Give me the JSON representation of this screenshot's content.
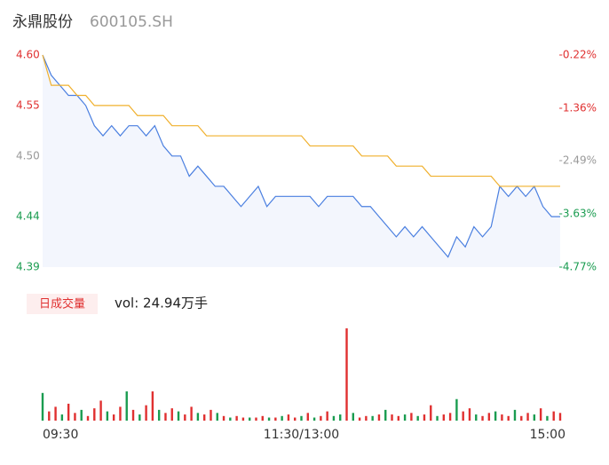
{
  "header": {
    "title": "永鼎股份",
    "code": "600105.SH"
  },
  "chart_data": [
    {
      "type": "line",
      "x": [
        0,
        4,
        8,
        12,
        16,
        20,
        24,
        28,
        32,
        36,
        40,
        44,
        48,
        52,
        56,
        60,
        64,
        68,
        72,
        76,
        80,
        84,
        88,
        92,
        96,
        100,
        104,
        108,
        112,
        116,
        120,
        124,
        128,
        132,
        136,
        140,
        144,
        148,
        152,
        156,
        160,
        164,
        168,
        172,
        176,
        180,
        184,
        188,
        192,
        196,
        200,
        204,
        208,
        212,
        216,
        220,
        224,
        228,
        232,
        236,
        240
      ],
      "xlim": [
        0,
        240
      ],
      "xticks": [
        {
          "value": 0,
          "label": "09:30"
        },
        {
          "value": 120,
          "label": "11:30/13:00"
        },
        {
          "value": 240,
          "label": "15:00"
        }
      ],
      "series": [
        {
          "color": "#4a7fe0",
          "fill": "#f3f6fd",
          "values": [
            4.6,
            4.58,
            4.57,
            4.56,
            4.56,
            4.55,
            4.53,
            4.52,
            4.53,
            4.52,
            4.53,
            4.53,
            4.52,
            4.53,
            4.51,
            4.5,
            4.5,
            4.48,
            4.49,
            4.48,
            4.47,
            4.47,
            4.46,
            4.45,
            4.46,
            4.47,
            4.45,
            4.46,
            4.46,
            4.46,
            4.46,
            4.46,
            4.45,
            4.46,
            4.46,
            4.46,
            4.46,
            4.45,
            4.45,
            4.44,
            4.43,
            4.42,
            4.43,
            4.42,
            4.43,
            4.42,
            4.41,
            4.4,
            4.42,
            4.41,
            4.43,
            4.42,
            4.43,
            4.47,
            4.46,
            4.47,
            4.46,
            4.47,
            4.45,
            4.44,
            4.44
          ]
        },
        {
          "color": "#f0b02c",
          "values": [
            4.6,
            4.57,
            4.57,
            4.57,
            4.56,
            4.56,
            4.55,
            4.55,
            4.55,
            4.55,
            4.55,
            4.54,
            4.54,
            4.54,
            4.54,
            4.53,
            4.53,
            4.53,
            4.53,
            4.52,
            4.52,
            4.52,
            4.52,
            4.52,
            4.52,
            4.52,
            4.52,
            4.52,
            4.52,
            4.52,
            4.52,
            4.51,
            4.51,
            4.51,
            4.51,
            4.51,
            4.51,
            4.5,
            4.5,
            4.5,
            4.5,
            4.49,
            4.49,
            4.49,
            4.49,
            4.48,
            4.48,
            4.48,
            4.48,
            4.48,
            4.48,
            4.48,
            4.48,
            4.47,
            4.47,
            4.47,
            4.47,
            4.47,
            4.47,
            4.47,
            4.47
          ]
        }
      ],
      "ylim": [
        4.39,
        4.6
      ],
      "yticks": [
        {
          "value": 4.6,
          "label": "4.60"
        },
        {
          "value": 4.55,
          "label": "4.55"
        },
        {
          "value": 4.5,
          "label": "4.50"
        },
        {
          "value": 4.44,
          "label": "4.44"
        },
        {
          "value": 4.39,
          "label": "4.39"
        }
      ],
      "ytick_colors": [
        "#e03030",
        "#e03030",
        "#999999",
        "#1a9c50",
        "#1a9c50"
      ],
      "y2lim": [
        -4.77,
        -0.22
      ],
      "y2ticks": [
        {
          "value": -0.22,
          "label": "-0.22%"
        },
        {
          "value": -1.36,
          "label": "-1.36%"
        },
        {
          "value": -2.49,
          "label": "-2.49%"
        },
        {
          "value": -3.63,
          "label": "-3.63%"
        },
        {
          "value": -4.77,
          "label": "-4.77%"
        }
      ],
      "y2tick_colors": [
        "#e03030",
        "#e03030",
        "#999999",
        "#1a9c50",
        "#1a9c50"
      ]
    },
    {
      "type": "bar",
      "legend": "日成交量",
      "summary": "vol: 24.94万手",
      "x": [
        0,
        3,
        6,
        9,
        12,
        15,
        18,
        21,
        24,
        27,
        30,
        33,
        36,
        39,
        42,
        45,
        48,
        51,
        54,
        57,
        60,
        63,
        66,
        69,
        72,
        75,
        78,
        81,
        84,
        87,
        90,
        93,
        96,
        99,
        102,
        105,
        108,
        111,
        114,
        117,
        120,
        123,
        126,
        129,
        132,
        135,
        138,
        141,
        144,
        147,
        150,
        153,
        156,
        159,
        162,
        165,
        168,
        171,
        174,
        177,
        180,
        183,
        186,
        189,
        192,
        195,
        198,
        201,
        204,
        207,
        210,
        213,
        216,
        219,
        222,
        225,
        228,
        231,
        234,
        237,
        240
      ],
      "values": [
        1800,
        600,
        900,
        400,
        1100,
        500,
        700,
        300,
        800,
        1300,
        600,
        400,
        900,
        1900,
        700,
        400,
        1000,
        1900,
        700,
        500,
        800,
        600,
        400,
        900,
        500,
        400,
        700,
        500,
        300,
        200,
        300,
        200,
        200,
        200,
        300,
        200,
        200,
        300,
        400,
        200,
        300,
        500,
        200,
        300,
        600,
        300,
        400,
        6000,
        500,
        200,
        300,
        300,
        400,
        700,
        400,
        300,
        400,
        500,
        300,
        400,
        1000,
        300,
        400,
        500,
        1400,
        600,
        800,
        400,
        300,
        500,
        600,
        400,
        300,
        700,
        300,
        500,
        400,
        800,
        300,
        600,
        500
      ],
      "colors": [
        "#1a9c50",
        "#e03030",
        "#e03030",
        "#1a9c50",
        "#e03030",
        "#e03030",
        "#1a9c50",
        "#e03030",
        "#e03030",
        "#e03030",
        "#1a9c50",
        "#e03030",
        "#e03030",
        "#1a9c50",
        "#e03030",
        "#1a9c50",
        "#e03030",
        "#e03030",
        "#1a9c50",
        "#e03030",
        "#e03030",
        "#1a9c50",
        "#e03030",
        "#e03030",
        "#1a9c50",
        "#e03030",
        "#e03030",
        "#1a9c50",
        "#e03030",
        "#1a9c50",
        "#e03030",
        "#e03030",
        "#1a9c50",
        "#e03030",
        "#e03030",
        "#1a9c50",
        "#e03030",
        "#1a9c50",
        "#e03030",
        "#e03030",
        "#1a9c50",
        "#e03030",
        "#1a9c50",
        "#e03030",
        "#e03030",
        "#1a9c50",
        "#1a9c50",
        "#e03030",
        "#1a9c50",
        "#e03030",
        "#e03030",
        "#1a9c50",
        "#e03030",
        "#1a9c50",
        "#e03030",
        "#e03030",
        "#1a9c50",
        "#e03030",
        "#1a9c50",
        "#e03030",
        "#e03030",
        "#1a9c50",
        "#e03030",
        "#e03030",
        "#1a9c50",
        "#e03030",
        "#e03030",
        "#1a9c50",
        "#e03030",
        "#e03030",
        "#1a9c50",
        "#e03030",
        "#e03030",
        "#1a9c50",
        "#e03030",
        "#e03030",
        "#1a9c50",
        "#e03030",
        "#1a9c50",
        "#e03030",
        "#e03030"
      ]
    }
  ]
}
